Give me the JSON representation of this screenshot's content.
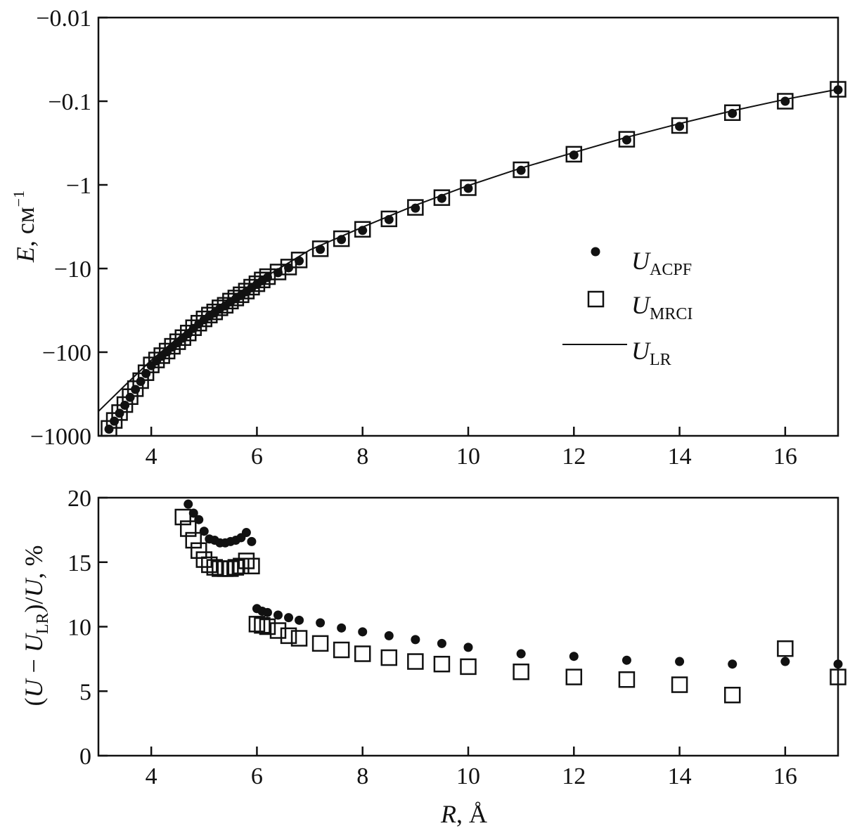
{
  "chart_data": [
    {
      "type": "scatter",
      "panel": "top",
      "xlabel": {
        "var": "R",
        "unit": ", Å"
      },
      "ylabel": {
        "var": "E",
        "unit": ", см",
        "sup": "−1"
      },
      "xlim": [
        3,
        17
      ],
      "ylim": [
        -1000,
        -0.01
      ],
      "yscale": "log",
      "xticks": [
        4,
        6,
        8,
        10,
        12,
        14,
        16
      ],
      "xtick_labels": [
        "4",
        "6",
        "8",
        "10",
        "12",
        "14",
        "16"
      ],
      "yticks": [
        -0.01,
        -0.1,
        -1,
        -10,
        -100,
        -1000
      ],
      "ytick_labels": [
        "−0.01",
        "−0.1",
        "−1",
        "−10",
        "−100",
        "−1000"
      ],
      "legend_position": "center-right",
      "legend": [
        {
          "symbol": "U",
          "sub": "ACPF",
          "marker": "dot"
        },
        {
          "symbol": "U",
          "sub": "MRCI",
          "marker": "square"
        },
        {
          "symbol": "U",
          "sub": "LR",
          "marker": "line"
        }
      ],
      "series": [
        {
          "name": "U_ACPF",
          "marker": "dot",
          "x": [
            3.2,
            3.3,
            3.4,
            3.5,
            3.6,
            3.7,
            3.8,
            3.9,
            4.0,
            4.1,
            4.2,
            4.3,
            4.4,
            4.5,
            4.6,
            4.7,
            4.8,
            4.9,
            5.0,
            5.1,
            5.2,
            5.3,
            5.4,
            5.5,
            5.6,
            5.7,
            5.8,
            5.9,
            6.0,
            6.1,
            6.2,
            6.4,
            6.6,
            6.8,
            7.2,
            7.6,
            8.0,
            8.5,
            9.0,
            9.5,
            10,
            11,
            12,
            13,
            14,
            15,
            16,
            17
          ],
          "y": [
            -832,
            -668,
            -537,
            -431,
            -347,
            -279,
            -224,
            -180,
            -145,
            -127,
            -112,
            -99,
            -87,
            -77,
            -68,
            -60,
            -52,
            -46,
            -41,
            -37,
            -34,
            -30,
            -28,
            -25,
            -23,
            -21,
            -19,
            -17,
            -15.5,
            -14,
            -12.8,
            -11.2,
            -9.8,
            -8.1,
            -5.9,
            -4.5,
            -3.5,
            -2.6,
            -1.9,
            -1.45,
            -1.1,
            -0.67,
            -0.44,
            -0.29,
            -0.2,
            -0.14,
            -0.1,
            -0.073
          ]
        },
        {
          "name": "U_MRCI",
          "marker": "square",
          "x": [
            3.2,
            3.3,
            3.4,
            3.5,
            3.6,
            3.7,
            3.8,
            3.9,
            4.0,
            4.1,
            4.2,
            4.3,
            4.4,
            4.5,
            4.6,
            4.7,
            4.8,
            4.9,
            5.0,
            5.1,
            5.2,
            5.3,
            5.4,
            5.5,
            5.6,
            5.7,
            5.8,
            5.9,
            6.0,
            6.1,
            6.2,
            6.4,
            6.6,
            6.8,
            7.2,
            7.6,
            8.0,
            8.5,
            9.0,
            9.5,
            10,
            11,
            12,
            13,
            14,
            15,
            16,
            17
          ],
          "y": [
            -815,
            -655,
            -527,
            -423,
            -340,
            -273,
            -219,
            -176,
            -142,
            -124,
            -110,
            -97,
            -85,
            -75,
            -67,
            -59,
            -51,
            -45,
            -40,
            -36,
            -33,
            -29.5,
            -27.5,
            -24.5,
            -22.5,
            -20.6,
            -18.6,
            -16.7,
            -15.2,
            -13.7,
            -12.5,
            -11,
            -9.6,
            -7.9,
            -5.8,
            -4.4,
            -3.4,
            -2.55,
            -1.86,
            -1.42,
            -1.08,
            -0.66,
            -0.43,
            -0.285,
            -0.195,
            -0.137,
            -0.1,
            -0.072
          ]
        },
        {
          "name": "U_LR",
          "marker": "line",
          "x": [
            3,
            3.5,
            4,
            4.5,
            5,
            5.5,
            6,
            7,
            8,
            9,
            10,
            11,
            12,
            13,
            14,
            15,
            16,
            17
          ],
          "y": [
            -510,
            -250,
            -125,
            -68,
            -38,
            -23,
            -14.5,
            -6,
            -3.2,
            -1.75,
            -1.02,
            -0.63,
            -0.41,
            -0.27,
            -0.185,
            -0.13,
            -0.095,
            -0.072
          ]
        }
      ]
    },
    {
      "type": "scatter",
      "panel": "bottom",
      "xlabel": {
        "var": "R",
        "unit": ", Å"
      },
      "ylabel": {
        "pre": "(",
        "u1": "U",
        "mid": " − ",
        "u2": "U",
        "sub": "LR",
        "post": ")/",
        "u3": "U",
        "end": ", %"
      },
      "xlim": [
        3,
        17
      ],
      "ylim": [
        0,
        20
      ],
      "xticks": [
        4,
        6,
        8,
        10,
        12,
        14,
        16
      ],
      "xtick_labels": [
        "4",
        "6",
        "8",
        "10",
        "12",
        "14",
        "16"
      ],
      "yticks": [
        0,
        5,
        10,
        15,
        20
      ],
      "ytick_labels": [
        "0",
        "5",
        "10",
        "15",
        "20"
      ],
      "series": [
        {
          "name": "U_ACPF",
          "marker": "dot",
          "x": [
            4.7,
            4.8,
            4.9,
            5.0,
            5.1,
            5.2,
            5.3,
            5.4,
            5.5,
            5.6,
            5.7,
            5.8,
            5.9,
            6.0,
            6.1,
            6.2,
            6.4,
            6.6,
            6.8,
            7.2,
            7.6,
            8.0,
            8.5,
            9.0,
            9.5,
            10,
            11,
            12,
            13,
            14,
            15,
            16,
            17
          ],
          "y": [
            19.5,
            18.8,
            18.3,
            17.4,
            16.8,
            16.7,
            16.5,
            16.5,
            16.6,
            16.7,
            16.9,
            17.3,
            16.6,
            11.4,
            11.2,
            11.1,
            10.9,
            10.7,
            10.5,
            10.3,
            9.9,
            9.6,
            9.3,
            9.0,
            8.7,
            8.4,
            7.9,
            7.7,
            7.4,
            7.3,
            7.1,
            7.3,
            7.1
          ]
        },
        {
          "name": "U_MRCI",
          "marker": "square",
          "x": [
            4.6,
            4.7,
            4.8,
            4.9,
            5.0,
            5.1,
            5.2,
            5.3,
            5.4,
            5.5,
            5.6,
            5.7,
            5.8,
            5.9,
            6.0,
            6.1,
            6.2,
            6.4,
            6.6,
            6.8,
            7.2,
            7.6,
            8.0,
            8.5,
            9.0,
            9.5,
            10,
            11,
            12,
            13,
            14,
            15,
            16,
            17
          ],
          "y": [
            18.5,
            17.6,
            16.7,
            15.9,
            15.2,
            14.8,
            14.6,
            14.5,
            14.5,
            14.5,
            14.6,
            14.7,
            15.1,
            14.7,
            10.2,
            10.1,
            10.0,
            9.7,
            9.3,
            9.1,
            8.7,
            8.2,
            7.9,
            7.6,
            7.3,
            7.1,
            6.9,
            6.5,
            6.1,
            5.9,
            5.5,
            4.7,
            8.3,
            6.1
          ]
        }
      ]
    }
  ]
}
